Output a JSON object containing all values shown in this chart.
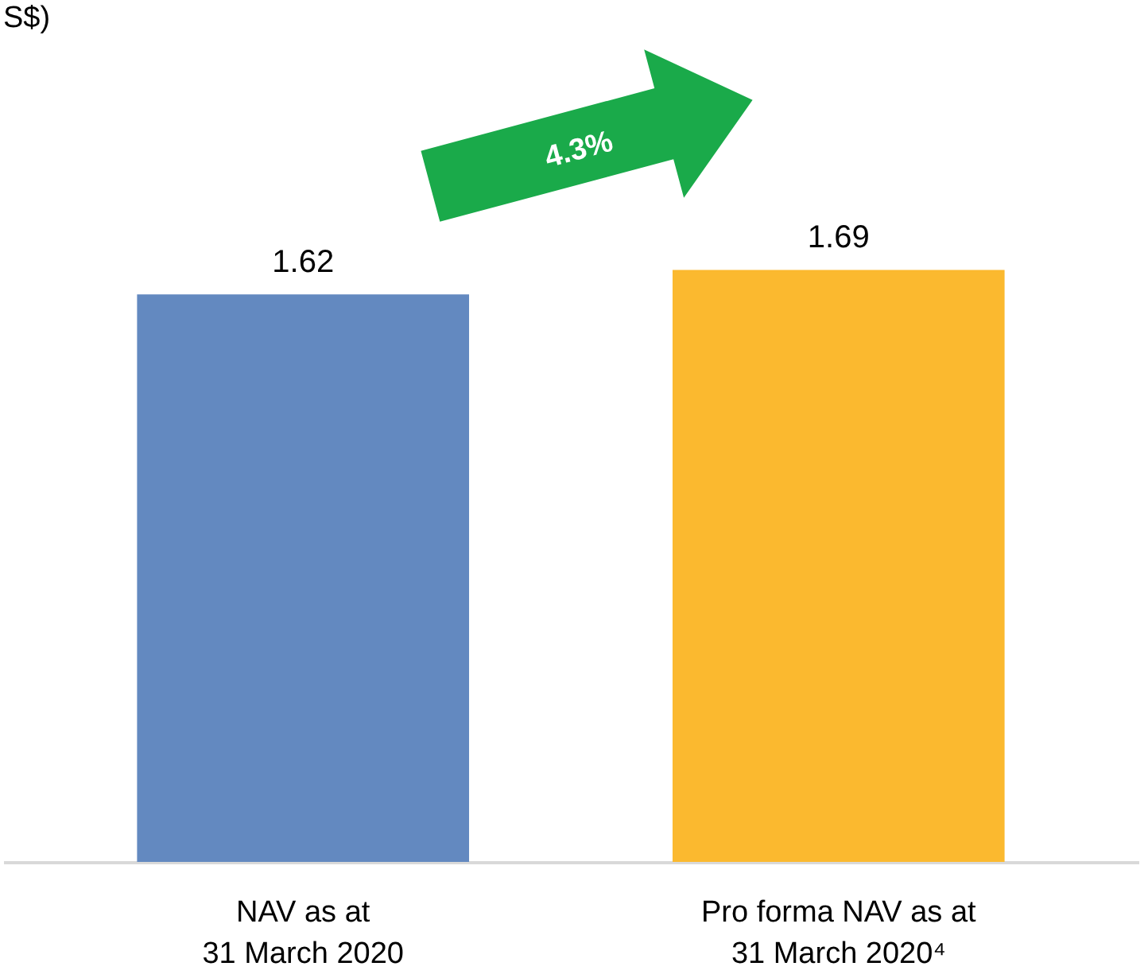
{
  "chart_data": {
    "type": "bar",
    "title": "S$)",
    "categories": [
      "NAV as at\n31 March 2020",
      "Pro forma NAV as at\n31 March 2020⁴"
    ],
    "values": [
      1.62,
      1.69
    ],
    "colors": [
      "#6389c0",
      "#fbb92f"
    ],
    "data_labels": true,
    "annotations": [
      "4.3%"
    ],
    "tick_labels": "x"
  }
}
